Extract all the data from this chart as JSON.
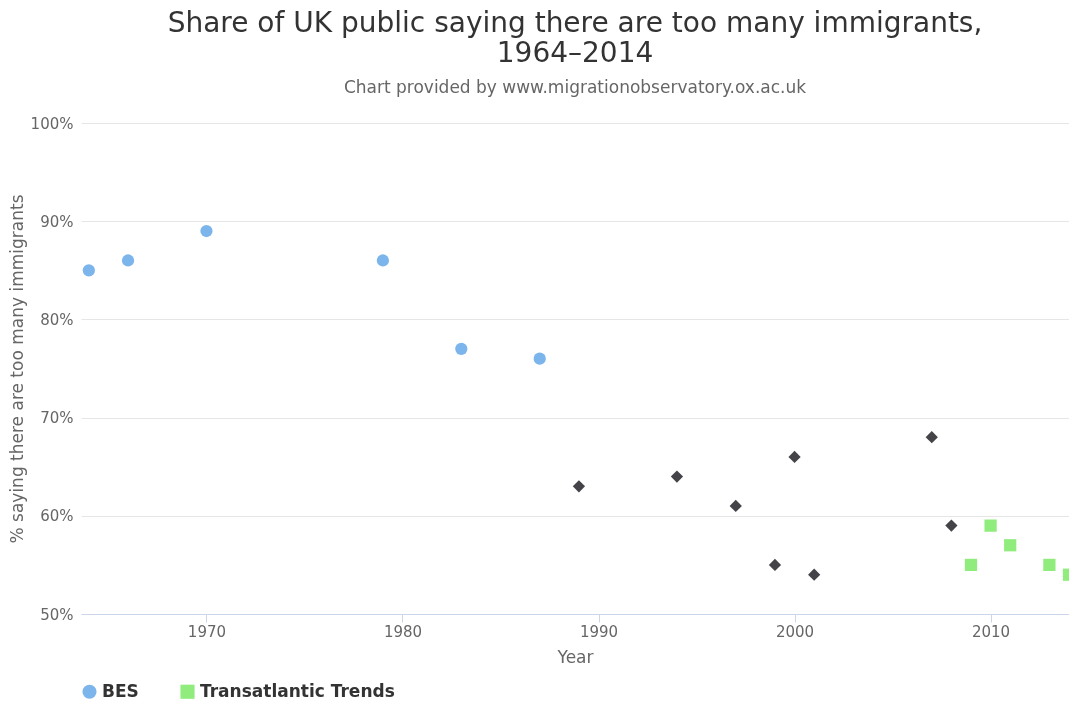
{
  "chart_data": {
    "type": "scatter",
    "title": "Share of UK public saying there are too many immigrants, 1964–2014",
    "subtitle": "Chart provided by www.migrationobservatory.ox.ac.uk",
    "xlabel": "Year",
    "ylabel": "% saying there are too many immigrants",
    "xlim": [
      1963.6,
      2014
    ],
    "xticks": [
      1970,
      1980,
      1990,
      2000,
      2010
    ],
    "ylim": [
      50,
      100
    ],
    "yticks": [
      {
        "value": 50,
        "label": "50%"
      },
      {
        "value": 60,
        "label": "60%"
      },
      {
        "value": 70,
        "label": "70%"
      },
      {
        "value": 80,
        "label": "80%"
      },
      {
        "value": 90,
        "label": "90%"
      },
      {
        "value": 100,
        "label": "100%"
      }
    ],
    "grid": "y",
    "legend": "bottom",
    "series": [
      {
        "name": "BES",
        "color": "#7cb5ec",
        "marker": "circle",
        "x": [
          1964,
          1966,
          1970,
          1979,
          1983,
          1987
        ],
        "values": [
          85,
          86,
          89,
          86,
          77,
          76
        ]
      },
      {
        "color": "#434348",
        "marker": "diamond",
        "x": [
          1989,
          1994,
          1997,
          1999,
          2000,
          2001,
          2007,
          2008
        ],
        "values": [
          63,
          64,
          61,
          55,
          66,
          54,
          68,
          59
        ]
      },
      {
        "name": "Transatlantic Trends",
        "color": "#90ed7d",
        "marker": "square",
        "x": [
          2009,
          2010,
          2011,
          2013,
          2014
        ],
        "values": [
          55,
          59,
          57,
          55,
          54
        ]
      }
    ]
  }
}
